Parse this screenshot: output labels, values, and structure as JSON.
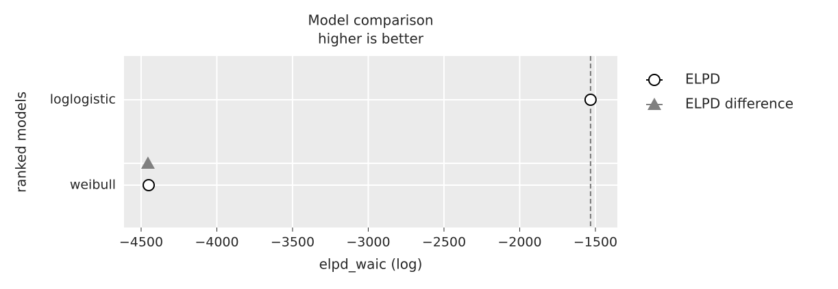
{
  "chart_data": {
    "type": "compare",
    "title": "Model comparison",
    "subtitle": "higher is better",
    "x_label": "elpd_waic (log)",
    "y_label": "ranked models",
    "categories": [
      "loglogistic",
      "weibull"
    ],
    "series": [
      {
        "name": "ELPD",
        "color": "#ffffff",
        "edgecolor": "#000000",
        "marker": "circle",
        "values": [
          -1532,
          -4450
        ]
      },
      {
        "name": "ELPD difference",
        "color": "#808080",
        "marker": "triangle",
        "values": [
          null,
          -4455
        ]
      }
    ],
    "xlim": [
      -4613,
      -1355
    ],
    "xticks": [
      {
        "value": -4500,
        "label": "−4500"
      },
      {
        "value": -4000,
        "label": "−4000"
      },
      {
        "value": -3500,
        "label": "−3500"
      },
      {
        "value": -3000,
        "label": "−3000"
      },
      {
        "value": -2500,
        "label": "−2500"
      },
      {
        "value": -2000,
        "label": "−2000"
      },
      {
        "value": -1500,
        "label": "−1500"
      }
    ],
    "grid": true
  }
}
